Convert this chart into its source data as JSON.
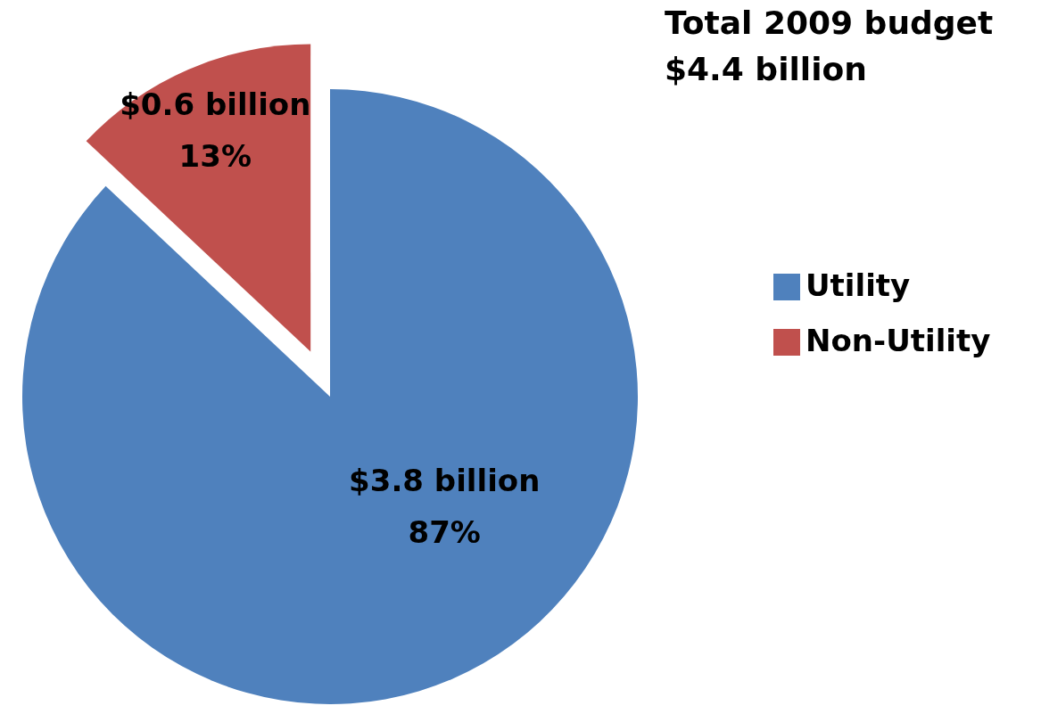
{
  "chart_data": {
    "type": "pie",
    "title": "Total 2009 budget",
    "subtitle": "$4.4 billion",
    "categories": [
      "Utility",
      "Non-Utility"
    ],
    "values": [
      87,
      13
    ],
    "colors": [
      "#4f81bd",
      "#c0504d"
    ],
    "value_labels": [
      "$3.8 billion\n87%",
      "$0.6 billion\n13%"
    ],
    "legend": "right"
  }
}
